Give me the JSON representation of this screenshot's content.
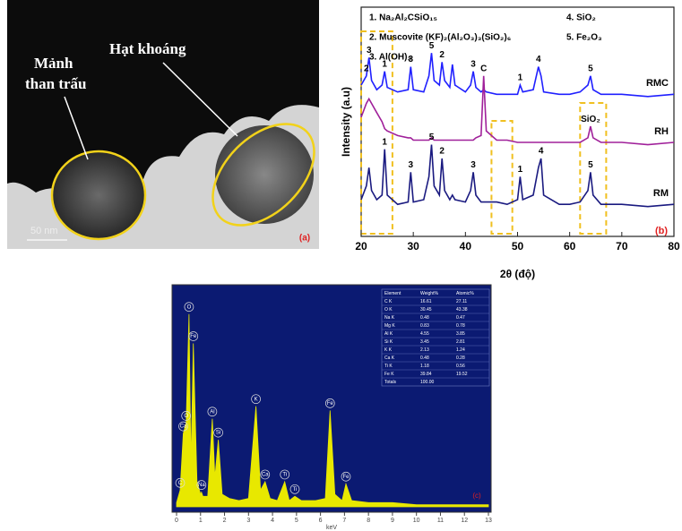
{
  "tem_image": {
    "fragment_label": [
      "Mảnh",
      "than trấu"
    ],
    "mineral_label": "Hạt khoáng",
    "scale_label": "50 nm",
    "panel_label": "(a)"
  },
  "chart_data": [
    {
      "type": "line",
      "xlabel": "2θ (độ)",
      "ylabel": "Intensity (a.u)",
      "panel_label": "(b)",
      "phase_legend": [
        "1. Na₂Al₂CSiO₁₅",
        "2. Muscovite (KF)₂(Al₂O₃)₃(SiO₂)₆",
        "3. Al(OH)₃",
        "4. SiO₂",
        "5. Fe₂O₃"
      ],
      "xlim": [
        20,
        80
      ],
      "xticks": [
        20,
        30,
        40,
        50,
        60,
        70,
        80
      ],
      "ylim": [
        0,
        100
      ],
      "x": [
        20,
        21,
        21.5,
        22,
        23,
        24,
        24.5,
        25,
        27,
        29,
        29.5,
        30,
        32,
        33,
        33.5,
        34,
        35,
        35.5,
        36,
        37,
        37.5,
        38,
        40,
        41,
        41.5,
        42,
        43,
        43.5,
        44,
        46,
        48,
        50,
        50.5,
        51,
        53,
        54,
        54.5,
        55,
        58,
        60,
        62,
        63.5,
        64,
        64.5,
        66,
        70,
        75,
        80
      ],
      "series": [
        {
          "name": "RMC",
          "color": "#2020ff",
          "values": [
            66,
            70,
            78,
            68,
            64,
            66,
            72,
            65,
            63,
            64,
            74,
            64,
            63,
            70,
            80,
            68,
            66,
            76,
            68,
            65,
            75,
            66,
            63,
            66,
            72,
            65,
            63,
            64,
            63,
            62,
            62,
            62,
            66,
            63,
            64,
            74,
            70,
            63,
            62,
            62,
            63,
            66,
            70,
            64,
            62,
            62,
            61,
            62
          ],
          "peak_labels": [
            {
              "x": 21,
              "label": "2"
            },
            {
              "x": 21.5,
              "label": "3"
            },
            {
              "x": 24.5,
              "label": "1"
            },
            {
              "x": 29.5,
              "label": "3"
            },
            {
              "x": 33.5,
              "label": "5"
            },
            {
              "x": 35.5,
              "label": "2"
            },
            {
              "x": 41.5,
              "label": "3"
            },
            {
              "x": 50.5,
              "label": "1"
            },
            {
              "x": 54,
              "label": "4"
            },
            {
              "x": 64,
              "label": "5"
            }
          ]
        },
        {
          "name": "RH",
          "color": "#a0209a",
          "values": [
            52,
            58,
            60,
            58,
            54,
            50,
            47,
            46,
            44,
            43,
            43,
            42,
            42,
            42,
            43,
            42,
            42,
            42,
            42,
            42,
            42,
            42,
            42,
            42,
            42,
            43,
            44,
            70,
            46,
            42,
            42,
            41,
            41,
            41,
            41,
            41,
            41,
            41,
            41,
            41,
            41,
            43,
            48,
            43,
            41,
            41,
            40,
            41
          ],
          "peak_labels": [
            {
              "x": 43.5,
              "label": "C"
            },
            {
              "x": 64,
              "label": "SiO₂"
            }
          ]
        },
        {
          "name": "RM",
          "color": "#1a1a80",
          "values": [
            16,
            22,
            30,
            20,
            16,
            18,
            38,
            18,
            14,
            15,
            28,
            15,
            16,
            26,
            40,
            22,
            18,
            34,
            20,
            16,
            18,
            16,
            15,
            20,
            28,
            18,
            15,
            15,
            15,
            15,
            14,
            16,
            26,
            16,
            18,
            30,
            34,
            18,
            14,
            14,
            15,
            20,
            28,
            18,
            14,
            14,
            13,
            14
          ],
          "peak_labels": [
            {
              "x": 24.5,
              "label": "1"
            },
            {
              "x": 29.5,
              "label": "3"
            },
            {
              "x": 33.5,
              "label": "5"
            },
            {
              "x": 35.5,
              "label": "2"
            },
            {
              "x": 41.5,
              "label": "3"
            },
            {
              "x": 50.5,
              "label": "1"
            },
            {
              "x": 54.5,
              "label": "4"
            },
            {
              "x": 64,
              "label": "5"
            }
          ]
        }
      ]
    },
    {
      "type": "area",
      "xlabel": "keV",
      "panel_label": "(c)",
      "color": "#e8e800",
      "xlim": [
        0,
        13
      ],
      "xticks": [
        0,
        1,
        2,
        3,
        4,
        5,
        6,
        7,
        8,
        9,
        10,
        11,
        12,
        13
      ],
      "ylim": [
        0,
        100
      ],
      "x": [
        0,
        0.15,
        0.28,
        0.4,
        0.52,
        0.6,
        0.7,
        0.85,
        1.0,
        1.04,
        1.1,
        1.3,
        1.49,
        1.6,
        1.74,
        1.9,
        2.2,
        2.6,
        3.0,
        3.31,
        3.5,
        3.69,
        3.9,
        4.2,
        4.51,
        4.7,
        4.93,
        5.2,
        5.8,
        6.2,
        6.4,
        6.6,
        6.9,
        7.06,
        7.3,
        8,
        9,
        10,
        11,
        12,
        13
      ],
      "values": [
        2,
        8,
        35,
        40,
        92,
        20,
        78,
        12,
        6,
        7,
        5,
        5,
        42,
        14,
        32,
        6,
        4,
        3,
        4,
        48,
        8,
        12,
        4,
        3,
        12,
        3,
        5,
        3,
        3,
        4,
        46,
        6,
        3,
        11,
        3,
        2,
        2,
        1,
        1,
        1,
        1
      ],
      "peak_labels": [
        {
          "x": 0.15,
          "label": "C"
        },
        {
          "x": 0.28,
          "label": "Ca"
        },
        {
          "x": 0.4,
          "label": "O"
        },
        {
          "x": 0.52,
          "label": "O"
        },
        {
          "x": 0.7,
          "label": "Fe"
        },
        {
          "x": 1.04,
          "label": "Na"
        },
        {
          "x": 1.49,
          "label": "Al"
        },
        {
          "x": 1.74,
          "label": "Si"
        },
        {
          "x": 3.31,
          "label": "K"
        },
        {
          "x": 3.69,
          "label": "Ca"
        },
        {
          "x": 4.51,
          "label": "Ti"
        },
        {
          "x": 4.93,
          "label": "Ti"
        },
        {
          "x": 6.4,
          "label": "Fe"
        },
        {
          "x": 7.06,
          "label": "Fe"
        }
      ],
      "table": {
        "header": [
          "Element",
          "Weight%",
          "Atomic%"
        ],
        "rows": [
          [
            "C K",
            "16.61",
            "27.11"
          ],
          [
            "O K",
            "30.45",
            "43.38"
          ],
          [
            "Na K",
            "0.48",
            "0.47"
          ],
          [
            "Mg K",
            "0.83",
            "0.78"
          ],
          [
            "Al K",
            "4.55",
            "3.85"
          ],
          [
            "Si K",
            "3.45",
            "2.81"
          ],
          [
            "K K",
            "2.13",
            "1.24"
          ],
          [
            "Ca K",
            "0.48",
            "0.28"
          ],
          [
            "Ti K",
            "1.18",
            "0.56"
          ],
          [
            "Fe K",
            "39.84",
            "19.52"
          ],
          [
            "Totals",
            "100.00"
          ]
        ]
      }
    }
  ]
}
